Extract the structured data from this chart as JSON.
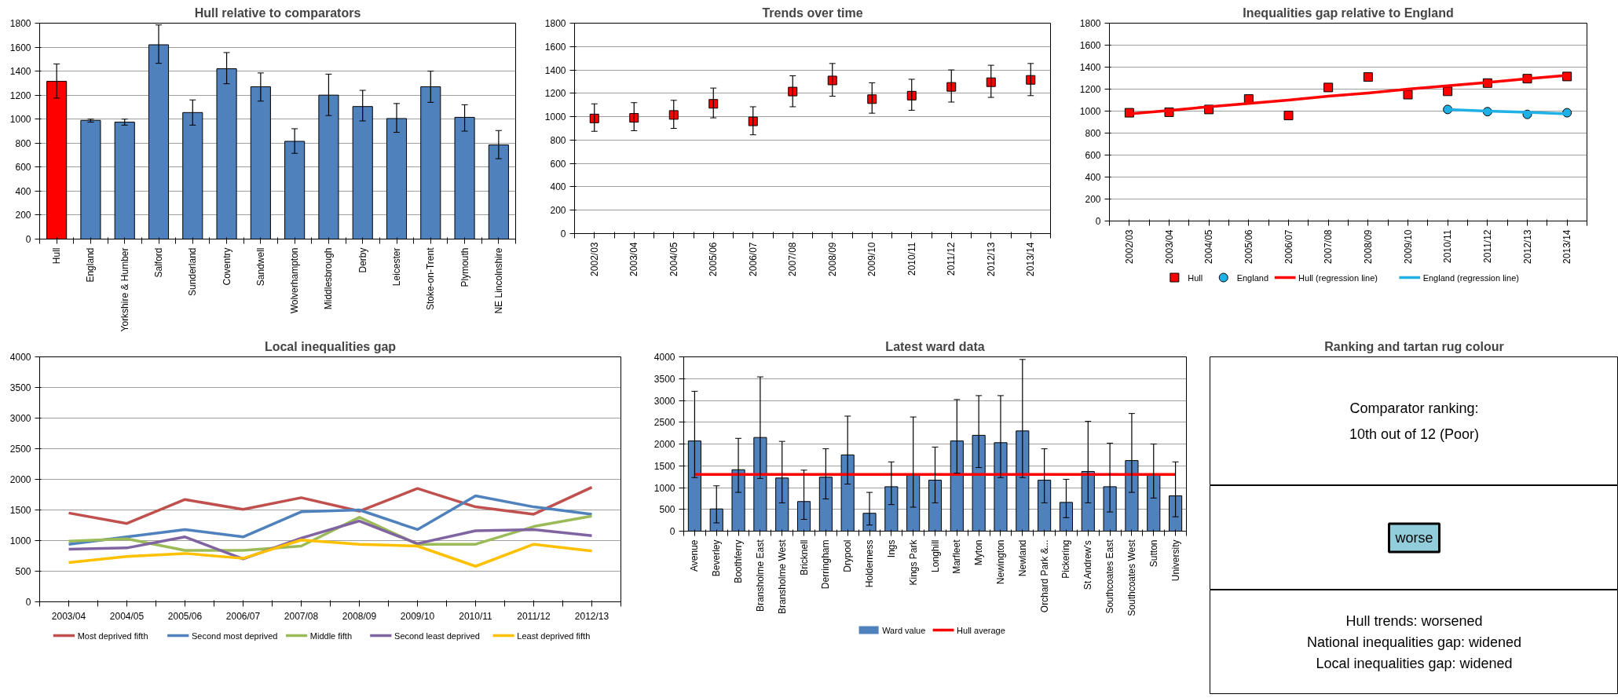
{
  "chart_data": [
    {
      "type": "bar",
      "title": "Hull relative to comparators",
      "categories": [
        "Hull",
        "England",
        "Yorkshire & Humber",
        "Salford",
        "Sunderland",
        "Coventry",
        "Sandwell",
        "Wolverhampton",
        "Middlesbrough",
        "Derby",
        "Leicester",
        "Stoke-on-Trent",
        "Plymouth",
        "NE Lincolnshire"
      ],
      "series": [
        {
          "values": [
            1315,
            990,
            975,
            1620,
            1055,
            1420,
            1270,
            815,
            1200,
            1105,
            1005,
            1270,
            1015,
            785
          ],
          "colors": [
            "#ff0000",
            "#4f81bd",
            "#4f81bd",
            "#4f81bd",
            "#4f81bd",
            "#4f81bd",
            "#4f81bd",
            "#4f81bd",
            "#4f81bd",
            "#4f81bd",
            "#4f81bd",
            "#4f81bd",
            "#4f81bd",
            "#4f81bd"
          ],
          "errors": [
            [
              1175,
              1460
            ],
            [
              975,
              1000
            ],
            [
              950,
              1000
            ],
            [
              1465,
              1785
            ],
            [
              950,
              1160
            ],
            [
              1295,
              1555
            ],
            [
              1150,
              1385
            ],
            [
              715,
              920
            ],
            [
              1030,
              1375
            ],
            [
              985,
              1240
            ],
            [
              890,
              1130
            ],
            [
              1140,
              1400
            ],
            [
              900,
              1120
            ],
            [
              670,
              905
            ]
          ]
        }
      ],
      "ylim": [
        0,
        1800
      ],
      "yticks": [
        0,
        200,
        400,
        600,
        800,
        1000,
        1200,
        1400,
        1600,
        1800
      ],
      "grid": "y",
      "legend": false
    },
    {
      "type": "scatter",
      "title": "Trends over time",
      "categories": [
        "2002/03",
        "2003/04",
        "2004/05",
        "2005/06",
        "2006/07",
        "2007/08",
        "2008/09",
        "2009/10",
        "2010/11",
        "2011/12",
        "2012/13",
        "2013/14"
      ],
      "series": [
        {
          "color": "#ff0000",
          "marker": "square",
          "values": [
            985,
            990,
            1015,
            1110,
            960,
            1215,
            1310,
            1150,
            1180,
            1255,
            1295,
            1315
          ],
          "errors": [
            [
              875,
              1110
            ],
            [
              880,
              1120
            ],
            [
              900,
              1140
            ],
            [
              990,
              1245
            ],
            [
              845,
              1085
            ],
            [
              1085,
              1350
            ],
            [
              1175,
              1455
            ],
            [
              1030,
              1290
            ],
            [
              1055,
              1320
            ],
            [
              1125,
              1400
            ],
            [
              1165,
              1440
            ],
            [
              1180,
              1455
            ]
          ]
        }
      ],
      "ylim": [
        0,
        1800
      ],
      "yticks": [
        0,
        200,
        400,
        600,
        800,
        1000,
        1200,
        1400,
        1600,
        1800
      ],
      "grid": "y",
      "legend": false
    },
    {
      "type": "scatter",
      "title": "Inequalities gap relative to England",
      "categories": [
        "2002/03",
        "2003/04",
        "2004/05",
        "2005/06",
        "2006/07",
        "2007/08",
        "2008/09",
        "2009/10",
        "2010/11",
        "2011/12",
        "2012/13",
        "2013/14"
      ],
      "series": [
        {
          "name": "Hull",
          "color": "#ff0000",
          "marker": "square",
          "values": [
            985,
            990,
            1015,
            1110,
            960,
            1215,
            1310,
            1150,
            1180,
            1255,
            1295,
            1315
          ]
        },
        {
          "name": "England",
          "color": "#1fb1e6",
          "marker": "circle",
          "values": [
            null,
            null,
            null,
            null,
            null,
            null,
            null,
            null,
            1015,
            995,
            970,
            985
          ]
        },
        {
          "name": "Hull (regression line)",
          "type": "line",
          "color": "#ff0000",
          "values": [
            975,
            1005,
            1040,
            1070,
            1100,
            1135,
            1165,
            1200,
            1230,
            1260,
            1295,
            1325
          ]
        },
        {
          "name": "England (regression line)",
          "type": "line",
          "color": "#1fb1e6",
          "values": [
            null,
            null,
            null,
            null,
            null,
            null,
            null,
            null,
            1015,
            1000,
            990,
            975
          ]
        }
      ],
      "ylim": [
        0,
        1800
      ],
      "yticks": [
        0,
        200,
        400,
        600,
        800,
        1000,
        1200,
        1400,
        1600,
        1800
      ],
      "grid": "y",
      "legend": "bottom"
    },
    {
      "type": "line",
      "title": "Local inequalities gap",
      "categories": [
        "2003/04",
        "2004/05",
        "2005/06",
        "2006/07",
        "2007/08",
        "2008/09",
        "2009/10",
        "2010/11",
        "2011/12",
        "2012/13"
      ],
      "series": [
        {
          "name": "Most deprived fifth",
          "color": "#c0504d",
          "values": [
            1450,
            1280,
            1670,
            1510,
            1700,
            1480,
            1850,
            1550,
            1430,
            1870
          ]
        },
        {
          "name": "Second most deprived",
          "color": "#4f81bd",
          "values": [
            940,
            1060,
            1180,
            1060,
            1470,
            1500,
            1180,
            1730,
            1550,
            1430
          ]
        },
        {
          "name": "Middle fifth",
          "color": "#9bbb59",
          "values": [
            990,
            1030,
            840,
            840,
            910,
            1380,
            940,
            940,
            1230,
            1400
          ]
        },
        {
          "name": "Second least deprived",
          "color": "#8064a2",
          "values": [
            860,
            880,
            1060,
            700,
            1040,
            1320,
            950,
            1160,
            1180,
            1080
          ]
        },
        {
          "name": "Least deprived fifth",
          "color": "#ffc000",
          "values": [
            640,
            740,
            790,
            710,
            1010,
            940,
            910,
            580,
            940,
            830
          ]
        }
      ],
      "ylim": [
        0,
        4000
      ],
      "yticks": [
        0,
        500,
        1000,
        1500,
        2000,
        2500,
        3000,
        3500,
        4000
      ],
      "grid": "y",
      "legend": "bottom"
    },
    {
      "type": "bar",
      "title": "Latest ward data",
      "categories": [
        "Avenue",
        "Beverley",
        "Boothferry",
        "Bransholme East",
        "Bransholme West",
        "Bricknell",
        "Derringham",
        "Drypool",
        "Holderness",
        "Ings",
        "Kings Park",
        "Longhill",
        "Marfleet",
        "Myton",
        "Newington",
        "Newland",
        "Orchard Park &...",
        "Pickering",
        "St Andrew's",
        "Southcoates East",
        "Southcoates West",
        "Sutton",
        "University"
      ],
      "series": [
        {
          "name": "Ward value",
          "color": "#4f81bd",
          "values": [
            2070,
            510,
            1410,
            2150,
            1220,
            680,
            1240,
            1750,
            410,
            1020,
            1290,
            1170,
            2070,
            2200,
            2030,
            2300,
            1170,
            660,
            1370,
            1020,
            1620,
            1300,
            810
          ],
          "errors": [
            [
              1230,
              3210
            ],
            [
              190,
              1040
            ],
            [
              890,
              2130
            ],
            [
              1210,
              3540
            ],
            [
              650,
              2060
            ],
            [
              270,
              1400
            ],
            [
              740,
              1890
            ],
            [
              1080,
              2640
            ],
            [
              140,
              890
            ],
            [
              610,
              1590
            ],
            [
              550,
              2620
            ],
            [
              650,
              1930
            ],
            [
              1330,
              3020
            ],
            [
              1460,
              3110
            ],
            [
              1230,
              3110
            ],
            [
              1230,
              3940
            ],
            [
              650,
              1890
            ],
            [
              310,
              1190
            ],
            [
              650,
              2520
            ],
            [
              440,
              2020
            ],
            [
              890,
              2700
            ],
            [
              760,
              2000
            ],
            [
              330,
              1590
            ]
          ]
        },
        {
          "name": "Hull average",
          "type": "line",
          "color": "#ff0000",
          "values": [
            1300,
            1300,
            1300,
            1300,
            1300,
            1300,
            1300,
            1300,
            1300,
            1300,
            1300,
            1300,
            1300,
            1300,
            1300,
            1300,
            1300,
            1300,
            1300,
            1300,
            1300,
            1300,
            1300
          ]
        }
      ],
      "ylim": [
        0,
        4000
      ],
      "yticks": [
        0,
        500,
        1000,
        1500,
        2000,
        2500,
        3000,
        3500,
        4000
      ],
      "grid": "y",
      "legend": "bottom"
    },
    {
      "type": "other",
      "title": "Ranking and tartan rug colour",
      "annotations": [
        "Comparator ranking:\n10th out of 12 (Poor)",
        "worse",
        "Hull trends: worsened\nNational inequalities gap: widened\nLocal inequalities gap: widened"
      ],
      "colors": [
        null,
        "#92cddc",
        null
      ]
    }
  ]
}
